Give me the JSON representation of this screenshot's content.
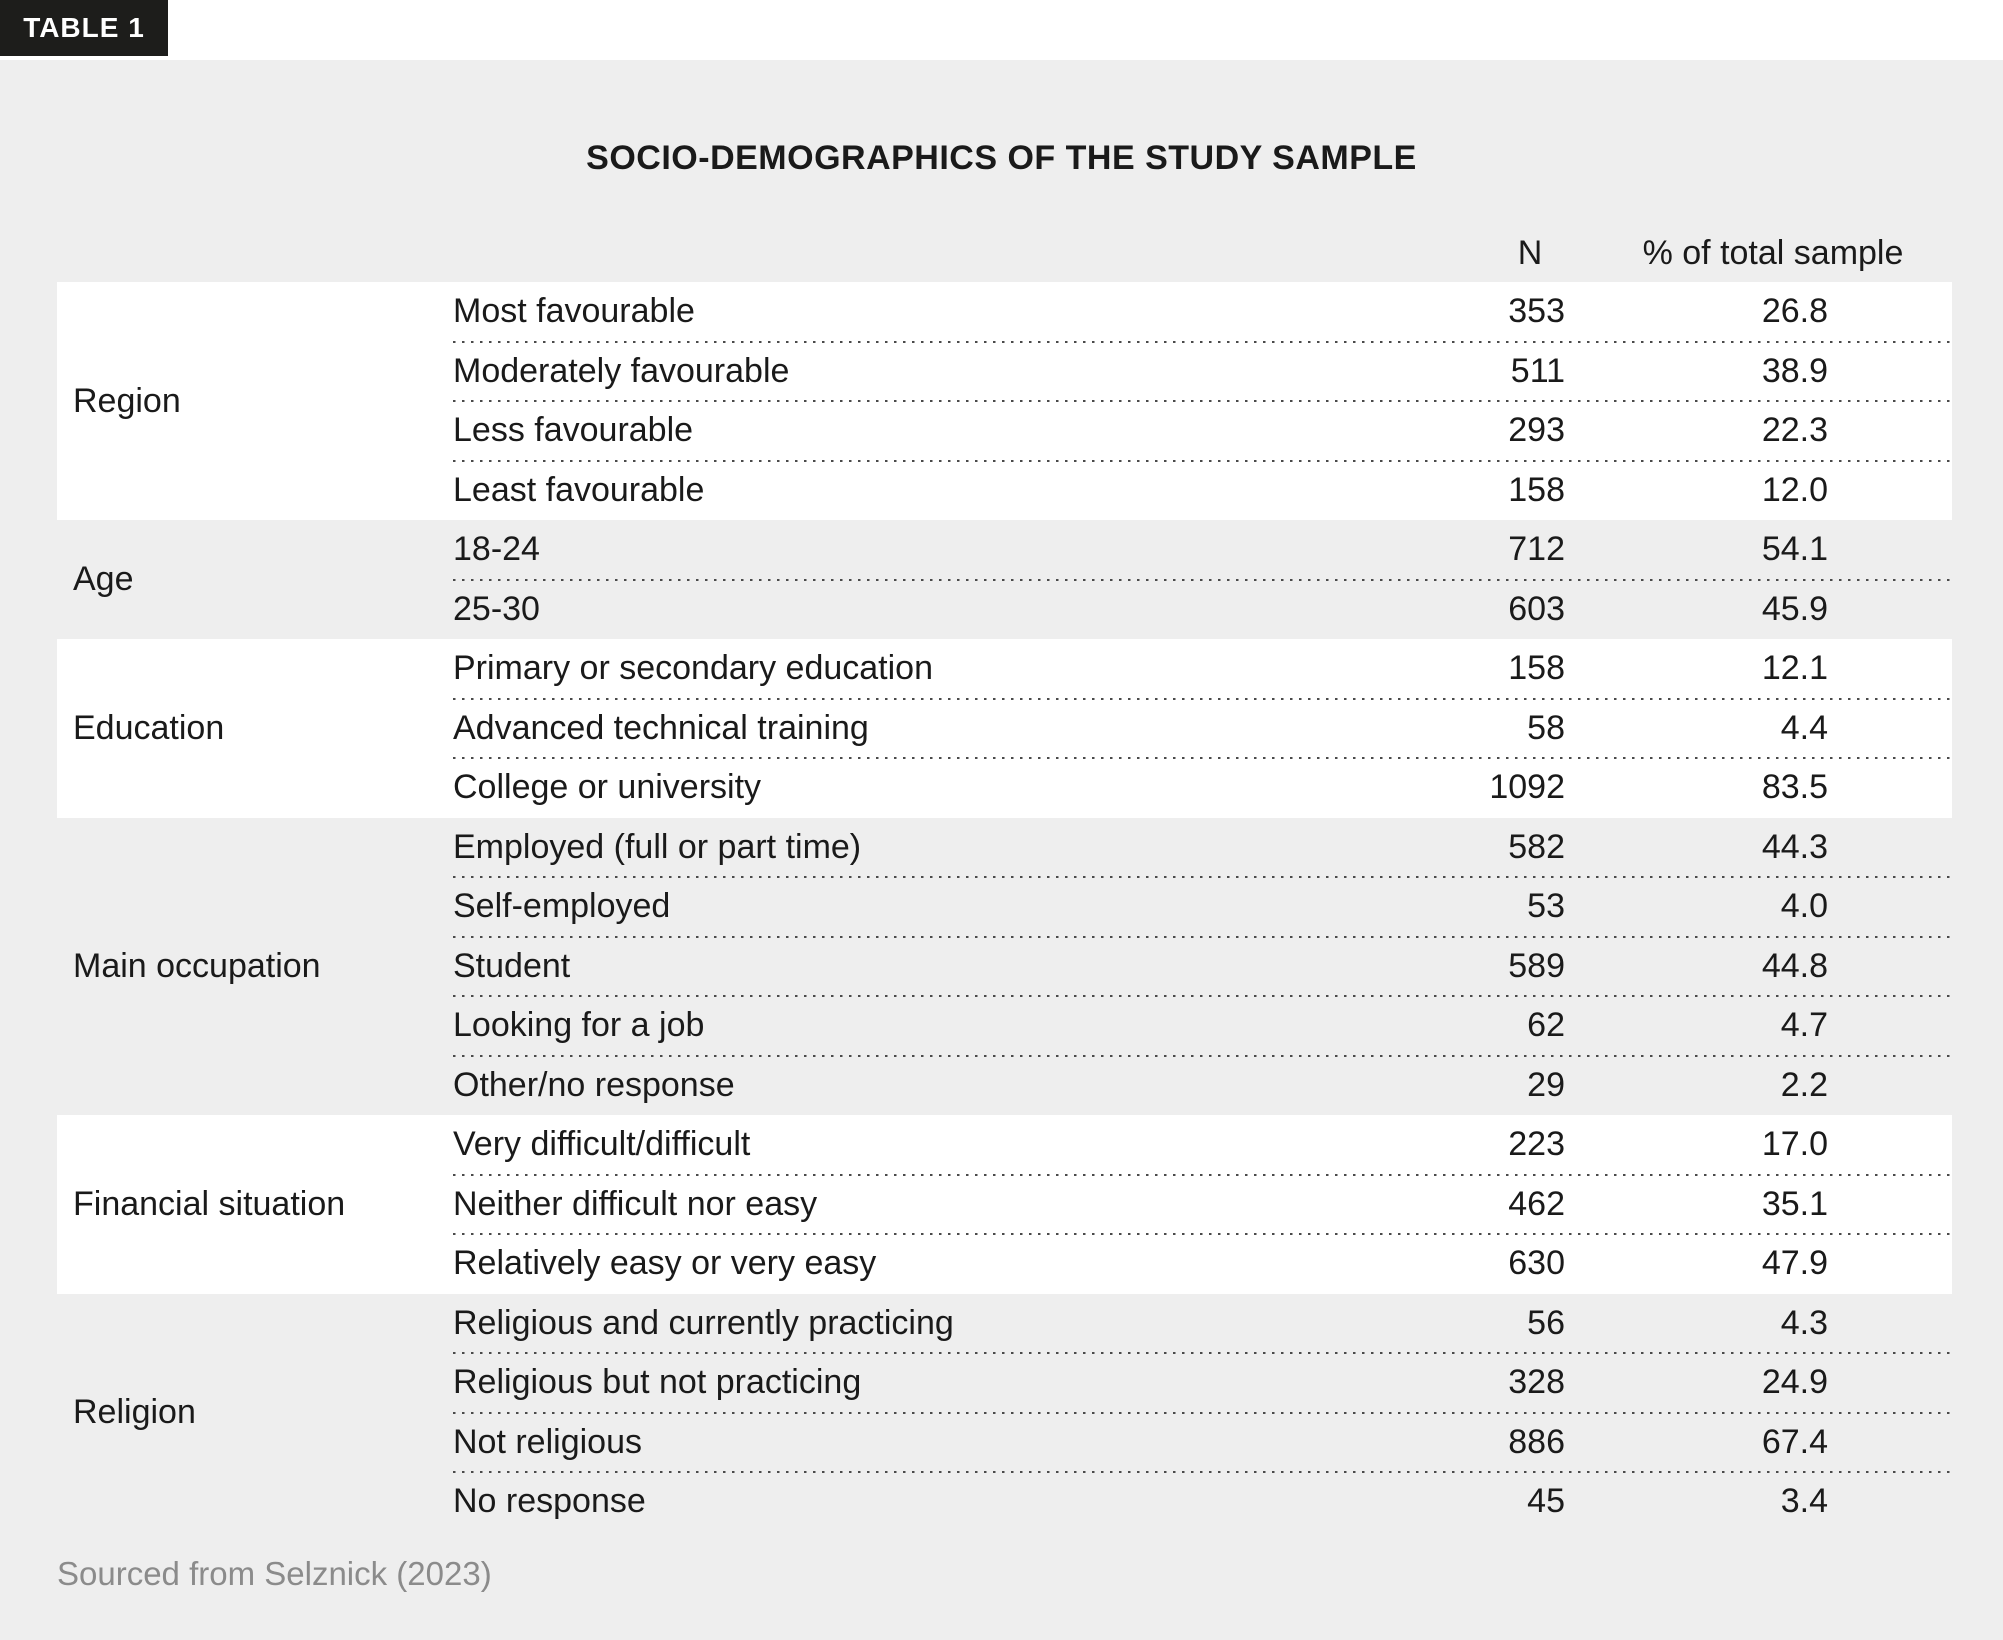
{
  "badge": {
    "label": "TABLE 1"
  },
  "title": "SOCIO-DEMOGRAPHICS OF THE STUDY SAMPLE",
  "columns": {
    "n": "N",
    "pct": "% of total sample"
  },
  "groups": [
    {
      "category": "Region",
      "rows": [
        {
          "label": "Most favourable",
          "n": "353",
          "pct": "26.8"
        },
        {
          "label": "Moderately favourable",
          "n": "511",
          "pct": "38.9"
        },
        {
          "label": "Less favourable",
          "n": "293",
          "pct": "22.3"
        },
        {
          "label": "Least favourable",
          "n": "158",
          "pct": "12.0"
        }
      ]
    },
    {
      "category": "Age",
      "rows": [
        {
          "label": "18-24",
          "n": "712",
          "pct": "54.1"
        },
        {
          "label": "25-30",
          "n": "603",
          "pct": "45.9"
        }
      ]
    },
    {
      "category": "Education",
      "rows": [
        {
          "label": "Primary or secondary education",
          "n": "158",
          "pct": "12.1"
        },
        {
          "label": "Advanced technical training",
          "n": "58",
          "pct": "4.4"
        },
        {
          "label": "College or university",
          "n": "1092",
          "pct": "83.5"
        }
      ]
    },
    {
      "category": "Main occupation",
      "rows": [
        {
          "label": "Employed (full or part time)",
          "n": "582",
          "pct": "44.3"
        },
        {
          "label": "Self-employed",
          "n": "53",
          "pct": "4.0"
        },
        {
          "label": "Student",
          "n": "589",
          "pct": "44.8"
        },
        {
          "label": "Looking for a job",
          "n": "62",
          "pct": "4.7"
        },
        {
          "label": "Other/no response",
          "n": "29",
          "pct": "2.2"
        }
      ]
    },
    {
      "category": "Financial situation",
      "rows": [
        {
          "label": "Very difficult/difficult",
          "n": "223",
          "pct": "17.0"
        },
        {
          "label": "Neither difficult nor easy",
          "n": "462",
          "pct": "35.1"
        },
        {
          "label": "Relatively easy or very easy",
          "n": "630",
          "pct": "47.9"
        }
      ]
    },
    {
      "category": "Religion",
      "rows": [
        {
          "label": "Religious and currently practicing",
          "n": "56",
          "pct": "4.3"
        },
        {
          "label": "Religious but not practicing",
          "n": "328",
          "pct": "24.9"
        },
        {
          "label": "Not religious",
          "n": "886",
          "pct": "67.4"
        },
        {
          "label": "No response",
          "n": "45",
          "pct": "3.4"
        }
      ]
    }
  ],
  "footer": "Sourced from Selznick (2023)",
  "colors": {
    "panel_bg": "#eeeeee",
    "card_bg": "#ffffff",
    "badge_bg": "#1d1d1b",
    "text": "#1a1a1a",
    "muted_text": "#8b8b8b"
  }
}
